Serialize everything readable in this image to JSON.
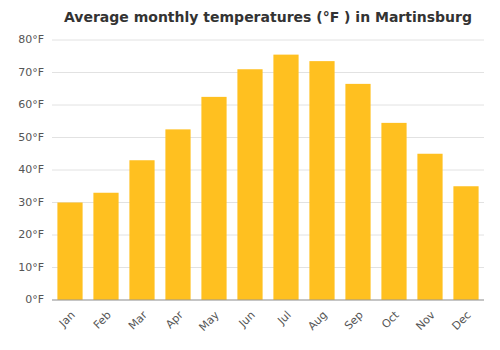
{
  "chart_data": {
    "type": "bar",
    "title": "Average monthly temperatures (°F ) in Martinsburg",
    "categories": [
      "Jan",
      "Feb",
      "Mar",
      "Apr",
      "May",
      "Jun",
      "Jul",
      "Aug",
      "Sep",
      "Oct",
      "Nov",
      "Dec"
    ],
    "values": [
      30,
      33,
      43,
      52.5,
      62.5,
      71,
      75.5,
      73.5,
      66.5,
      54.5,
      45,
      35
    ],
    "color": "#FFC020",
    "ylim": [
      0,
      80
    ],
    "yticks": [
      {
        "value": 0,
        "label": "0°F"
      },
      {
        "value": 10,
        "label": "10°F"
      },
      {
        "value": 20,
        "label": "20°F"
      },
      {
        "value": 30,
        "label": "30°F"
      },
      {
        "value": 40,
        "label": "40°F"
      },
      {
        "value": 50,
        "label": "50°F"
      },
      {
        "value": 60,
        "label": "60°F"
      },
      {
        "value": 70,
        "label": "70°F"
      },
      {
        "value": 80,
        "label": "80°F"
      }
    ],
    "grid": true
  }
}
